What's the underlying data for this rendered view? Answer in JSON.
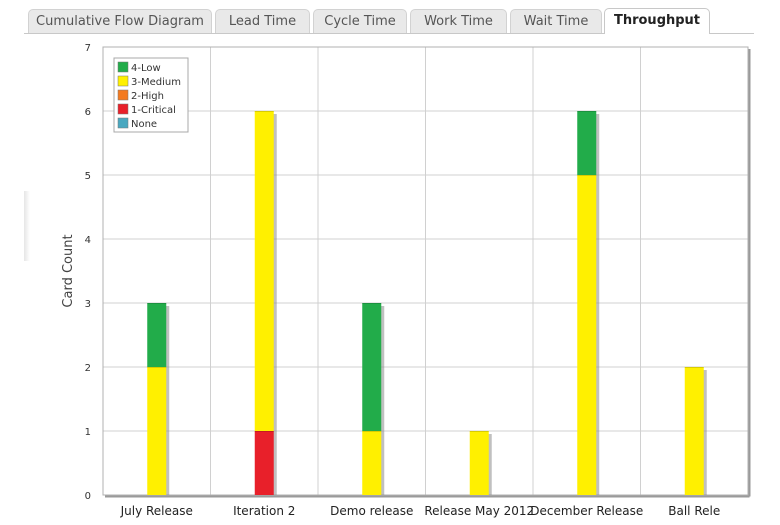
{
  "tabs": [
    {
      "label": "Cumulative Flow Diagram",
      "active": false
    },
    {
      "label": "Lead Time",
      "active": false
    },
    {
      "label": "Cycle Time",
      "active": false
    },
    {
      "label": "Work Time",
      "active": false
    },
    {
      "label": "Wait Time",
      "active": false
    },
    {
      "label": "Throughput",
      "active": true
    }
  ],
  "chart_data": {
    "type": "bar",
    "stacked": true,
    "ylabel": "Card Count",
    "xlabel": "",
    "ylim": [
      0,
      7
    ],
    "yticks": [
      0,
      1,
      2,
      3,
      4,
      5,
      6,
      7
    ],
    "grid": true,
    "legend_position": "top-left",
    "categories": [
      "July Release",
      "Iteration 2",
      "Demo release",
      "Release May 2012",
      "December Release",
      "Ball Rele"
    ],
    "series": [
      {
        "name": "None",
        "color": "#4aa8c0",
        "values": [
          0,
          0,
          0,
          0,
          0,
          0
        ]
      },
      {
        "name": "1-Critical",
        "color": "#e8202a",
        "values": [
          0,
          1,
          0,
          0,
          0,
          0
        ]
      },
      {
        "name": "2-High",
        "color": "#f47a20",
        "values": [
          0,
          0,
          0,
          0,
          0,
          0
        ]
      },
      {
        "name": "3-Medium",
        "color": "#fff000",
        "values": [
          2,
          5,
          1,
          1,
          5,
          2
        ]
      },
      {
        "name": "4-Low",
        "color": "#22ac4a",
        "values": [
          1,
          0,
          2,
          0,
          1,
          0
        ]
      }
    ],
    "legend_order": [
      "4-Low",
      "3-Medium",
      "2-High",
      "1-Critical",
      "None"
    ]
  }
}
